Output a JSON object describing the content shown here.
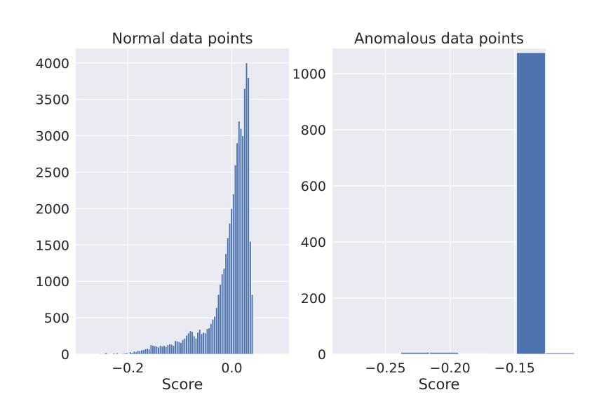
{
  "chart_data": [
    {
      "type": "bar",
      "title": "Normal data points",
      "xlabel": "Score",
      "ylabel": "",
      "xlim": [
        -0.3,
        0.11
      ],
      "ylim": [
        0,
        4200
      ],
      "xticks": [
        {
          "value": -0.2,
          "label": "−0.2"
        },
        {
          "value": 0.0,
          "label": "0.0"
        }
      ],
      "yticks": [
        0,
        500,
        1000,
        1500,
        2000,
        2500,
        3000,
        3500,
        4000
      ],
      "grid": true,
      "bar_color": "#4c72b0",
      "bin_start": -0.265,
      "bin_width": 0.0036,
      "values": [
        3,
        0,
        6,
        8,
        5,
        10,
        22,
        8,
        5,
        6,
        14,
        10,
        18,
        5,
        8,
        10,
        14,
        20,
        8,
        30,
        22,
        40,
        30,
        50,
        48,
        56,
        60,
        72,
        80,
        70,
        130,
        120,
        115,
        110,
        96,
        120,
        110,
        120,
        105,
        130,
        140,
        135,
        120,
        185,
        180,
        170,
        160,
        200,
        220,
        260,
        290,
        320,
        310,
        250,
        220,
        300,
        340,
        280,
        300,
        290,
        350,
        360,
        420,
        480,
        520,
        640,
        820,
        960,
        1100,
        1180,
        1380,
        1600,
        1800,
        2000,
        2200,
        2600,
        2900,
        3200,
        3100,
        3000,
        3650,
        4000,
        3800,
        1550,
        820
      ]
    },
    {
      "type": "bar",
      "title": "Anomalous data points",
      "xlabel": "Score",
      "ylabel": "",
      "xlim": [
        -0.291,
        -0.126
      ],
      "ylim": [
        0,
        1090
      ],
      "xticks": [
        {
          "value": -0.25,
          "label": "−0.25"
        },
        {
          "value": -0.2,
          "label": "−0.20"
        },
        {
          "value": -0.15,
          "label": "−0.15"
        }
      ],
      "yticks": [
        0,
        200,
        400,
        600,
        800,
        1000
      ],
      "grid": true,
      "bar_color": "#4c72b0",
      "bin_start": -0.283,
      "bin_width": 0.0224,
      "values": [
        0,
        1,
        7,
        7,
        2,
        0,
        1075,
        5
      ]
    }
  ]
}
